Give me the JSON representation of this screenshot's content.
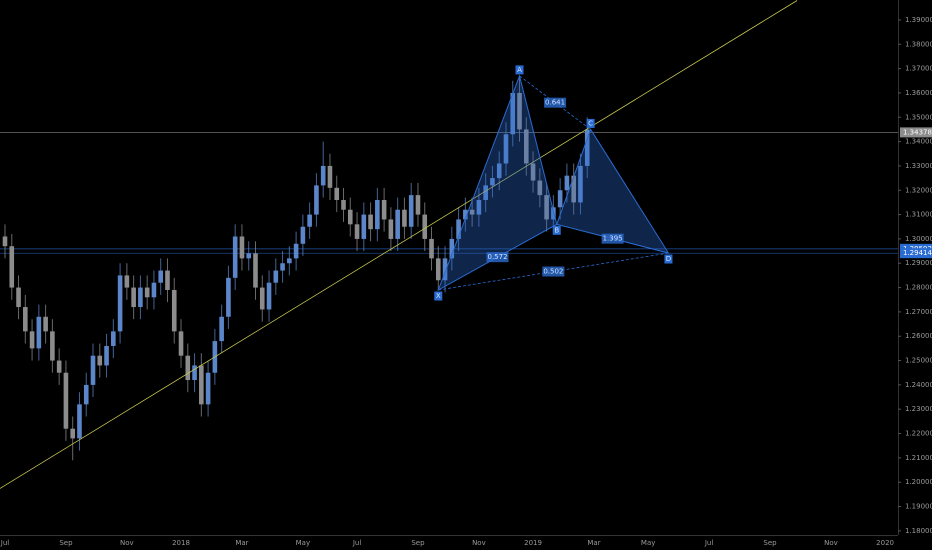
{
  "chart_data": {
    "type": "candlestick",
    "up_color": "#5b86c9",
    "down_color": "#8c8c8c",
    "ylim": [
      1.1783,
      1.3982
    ],
    "yticks": [
      {
        "value": 1.18,
        "label": "1.18000"
      },
      {
        "value": 1.19,
        "label": "1.19000"
      },
      {
        "value": 1.2,
        "label": "1.20000"
      },
      {
        "value": 1.21,
        "label": "1.21000"
      },
      {
        "value": 1.22,
        "label": "1.22000"
      },
      {
        "value": 1.23,
        "label": "1.23000"
      },
      {
        "value": 1.24,
        "label": "1.24000"
      },
      {
        "value": 1.25,
        "label": "1.25000"
      },
      {
        "value": 1.26,
        "label": "1.26000"
      },
      {
        "value": 1.27,
        "label": "1.27000"
      },
      {
        "value": 1.28,
        "label": "1.28000"
      },
      {
        "value": 1.29,
        "label": "1.29000"
      },
      {
        "value": 1.3,
        "label": "1.30000"
      },
      {
        "value": 1.31,
        "label": "1.31000"
      },
      {
        "value": 1.32,
        "label": "1.32000"
      },
      {
        "value": 1.33,
        "label": "1.33000"
      },
      {
        "value": 1.34,
        "label": "1.34000"
      },
      {
        "value": 1.35,
        "label": "1.35000"
      },
      {
        "value": 1.36,
        "label": "1.36000"
      },
      {
        "value": 1.37,
        "label": "1.37000"
      },
      {
        "value": 1.38,
        "label": "1.38000"
      },
      {
        "value": 1.39,
        "label": "1.39000"
      }
    ],
    "price_lines": [
      {
        "value": 1.34378,
        "color": "#8c8c8c"
      },
      {
        "value": 1.29592,
        "color": "#2a6bd1"
      },
      {
        "value": 1.29414,
        "color": "#2a6bd1"
      }
    ],
    "categories": [
      "Jul",
      null,
      null,
      null,
      null,
      null,
      null,
      null,
      null,
      "Sep",
      null,
      null,
      null,
      null,
      null,
      null,
      null,
      null,
      "Nov",
      null,
      null,
      null,
      null,
      null,
      null,
      null,
      "2018",
      null,
      null,
      null,
      null,
      null,
      null,
      null,
      null,
      "Mar",
      null,
      null,
      null,
      null,
      null,
      null,
      null,
      null,
      "May",
      null,
      null,
      null,
      null,
      null,
      null,
      null,
      "Jul",
      null,
      null,
      null,
      null,
      null,
      null,
      null,
      null,
      "Sep",
      null,
      null,
      null,
      null,
      null,
      null,
      null,
      null,
      "Nov",
      null,
      null,
      null,
      null,
      null,
      null,
      null,
      "2019",
      null,
      null,
      null,
      null,
      null,
      null,
      null,
      null,
      "Mar",
      null,
      null,
      null,
      null,
      null,
      null,
      null,
      "May",
      null,
      null,
      null,
      null,
      null,
      null,
      null,
      null,
      "Jul",
      null,
      null,
      null,
      null,
      null,
      null,
      null,
      null,
      "Sep",
      null,
      null,
      null,
      null,
      null,
      null,
      null,
      null,
      "Nov",
      null,
      null,
      null,
      null,
      null,
      null,
      null,
      "2020"
    ],
    "open": [
      1.301,
      1.297,
      1.28,
      1.272,
      1.262,
      1.255,
      1.268,
      1.262,
      1.25,
      1.245,
      1.222,
      1.218,
      1.232,
      1.24,
      1.252,
      1.248,
      1.256,
      1.262,
      1.285,
      1.28,
      1.272,
      1.28,
      1.276,
      1.282,
      1.287,
      1.279,
      1.262,
      1.252,
      1.242,
      1.248,
      1.232,
      1.245,
      1.258,
      1.268,
      1.284,
      1.301,
      1.292,
      1.294,
      1.28,
      1.271,
      1.282,
      1.287,
      1.29,
      1.292,
      1.298,
      1.305,
      1.31,
      1.322,
      1.33,
      1.321,
      1.316,
      1.312,
      1.306,
      1.3,
      1.31,
      1.304,
      1.316,
      1.308,
      1.3,
      1.312,
      1.305,
      1.318,
      1.31,
      1.3,
      1.292,
      1.283,
      1.292,
      1.3,
      1.308,
      1.312,
      1.31,
      1.316,
      1.322,
      1.325,
      1.331,
      1.343,
      1.36,
      1.345,
      1.331,
      1.324,
      1.318,
      1.308,
      1.313,
      1.32,
      1.326,
      1.315,
      1.33,
      null,
      null,
      null,
      null,
      null,
      null,
      null,
      null,
      null,
      null,
      null,
      null,
      null,
      null,
      null,
      null,
      null,
      null,
      null,
      null,
      null,
      null,
      null,
      null,
      null,
      null,
      null,
      null,
      null,
      null,
      null,
      null,
      null,
      null,
      null,
      null,
      null,
      null,
      null,
      null,
      null,
      null,
      null,
      null
    ],
    "high": [
      1.306,
      1.302,
      1.285,
      1.277,
      1.267,
      1.273,
      1.273,
      1.267,
      1.255,
      1.25,
      1.227,
      1.237,
      1.245,
      1.257,
      1.257,
      1.261,
      1.267,
      1.29,
      1.29,
      1.285,
      1.285,
      1.285,
      1.287,
      1.292,
      1.292,
      1.284,
      1.267,
      1.257,
      1.253,
      1.253,
      1.25,
      1.263,
      1.273,
      1.289,
      1.306,
      1.306,
      1.299,
      1.299,
      1.285,
      1.287,
      1.292,
      1.295,
      1.297,
      1.303,
      1.31,
      1.315,
      1.327,
      1.34,
      1.335,
      1.326,
      1.321,
      1.317,
      1.311,
      1.315,
      1.315,
      1.321,
      1.321,
      1.313,
      1.317,
      1.317,
      1.323,
      1.323,
      1.315,
      1.305,
      1.297,
      1.297,
      1.305,
      1.313,
      1.317,
      1.317,
      1.321,
      1.327,
      1.33,
      1.336,
      1.348,
      1.365,
      1.367,
      1.35,
      1.336,
      1.329,
      1.323,
      1.318,
      1.325,
      1.331,
      1.331,
      1.335,
      1.35,
      null,
      null,
      null,
      null,
      null,
      null,
      null,
      null,
      null,
      null,
      null,
      null,
      null,
      null,
      null,
      null,
      null,
      null,
      null,
      null,
      null,
      null,
      null,
      null,
      null,
      null,
      null,
      null,
      null,
      null,
      null,
      null,
      null,
      null,
      null,
      null,
      null,
      null,
      null,
      null,
      null,
      null,
      null,
      null
    ],
    "low": [
      1.292,
      1.275,
      1.267,
      1.257,
      1.25,
      1.25,
      1.257,
      1.245,
      1.24,
      1.217,
      1.209,
      1.213,
      1.227,
      1.235,
      1.243,
      1.243,
      1.251,
      1.257,
      1.275,
      1.267,
      1.267,
      1.271,
      1.271,
      1.277,
      1.274,
      1.257,
      1.247,
      1.237,
      1.237,
      1.227,
      1.227,
      1.24,
      1.253,
      1.263,
      1.279,
      1.287,
      1.287,
      1.275,
      1.266,
      1.266,
      1.277,
      1.282,
      1.285,
      1.287,
      1.293,
      1.3,
      1.305,
      1.317,
      1.316,
      1.311,
      1.307,
      1.301,
      1.295,
      1.295,
      1.299,
      1.299,
      1.303,
      1.295,
      1.295,
      1.3,
      1.3,
      1.305,
      1.295,
      1.287,
      1.279,
      1.278,
      1.287,
      1.295,
      1.303,
      1.305,
      1.305,
      1.311,
      1.317,
      1.32,
      1.326,
      1.338,
      1.34,
      1.326,
      1.319,
      1.313,
      1.303,
      1.303,
      1.308,
      1.315,
      1.31,
      1.31,
      1.325,
      null,
      null,
      null,
      null,
      null,
      null,
      null,
      null,
      null,
      null,
      null,
      null,
      null,
      null,
      null,
      null,
      null,
      null,
      null,
      null,
      null,
      null,
      null,
      null,
      null,
      null,
      null,
      null,
      null,
      null,
      null,
      null,
      null,
      null,
      null,
      null,
      null,
      null,
      null,
      null,
      null,
      null,
      null,
      null
    ],
    "close": [
      1.297,
      1.28,
      1.272,
      1.262,
      1.255,
      1.268,
      1.262,
      1.25,
      1.245,
      1.222,
      1.218,
      1.232,
      1.24,
      1.252,
      1.248,
      1.256,
      1.262,
      1.285,
      1.28,
      1.272,
      1.28,
      1.276,
      1.282,
      1.287,
      1.279,
      1.262,
      1.252,
      1.242,
      1.248,
      1.232,
      1.245,
      1.258,
      1.268,
      1.284,
      1.301,
      1.292,
      1.294,
      1.28,
      1.271,
      1.282,
      1.287,
      1.29,
      1.292,
      1.298,
      1.305,
      1.31,
      1.322,
      1.33,
      1.321,
      1.316,
      1.312,
      1.306,
      1.3,
      1.31,
      1.304,
      1.316,
      1.308,
      1.3,
      1.312,
      1.305,
      1.318,
      1.31,
      1.3,
      1.292,
      1.283,
      1.292,
      1.3,
      1.308,
      1.312,
      1.31,
      1.316,
      1.322,
      1.325,
      1.331,
      1.343,
      1.36,
      1.345,
      1.331,
      1.324,
      1.318,
      1.308,
      1.313,
      1.32,
      1.326,
      1.315,
      1.33,
      1.345,
      null,
      null,
      null,
      null,
      null,
      null,
      null,
      null,
      null,
      null,
      null,
      null,
      null,
      null,
      null,
      null,
      null,
      null,
      null,
      null,
      null,
      null,
      null,
      null,
      null,
      null,
      null,
      null,
      null,
      null,
      null,
      null,
      null,
      null,
      null,
      null,
      null,
      null,
      null,
      null,
      null,
      null,
      null,
      null
    ],
    "trendline": {
      "color": "#c8c850",
      "points": [
        {
          "x": -1,
          "y": 1.197
        },
        {
          "x": 117,
          "y": 1.398
        }
      ]
    },
    "pattern": {
      "color": "#2a6bd1",
      "points": [
        {
          "label": "X",
          "x": 64,
          "y": 1.279
        },
        {
          "label": "A",
          "x": 76,
          "y": 1.367
        },
        {
          "label": "B",
          "x": 81.5,
          "y": 1.306
        },
        {
          "label": "C",
          "x": 86.5,
          "y": 1.345
        },
        {
          "label": "D",
          "x": 98,
          "y": 1.2942
        }
      ],
      "ratios": [
        "0.641",
        "0.572",
        "1.395",
        "0.502"
      ]
    }
  }
}
